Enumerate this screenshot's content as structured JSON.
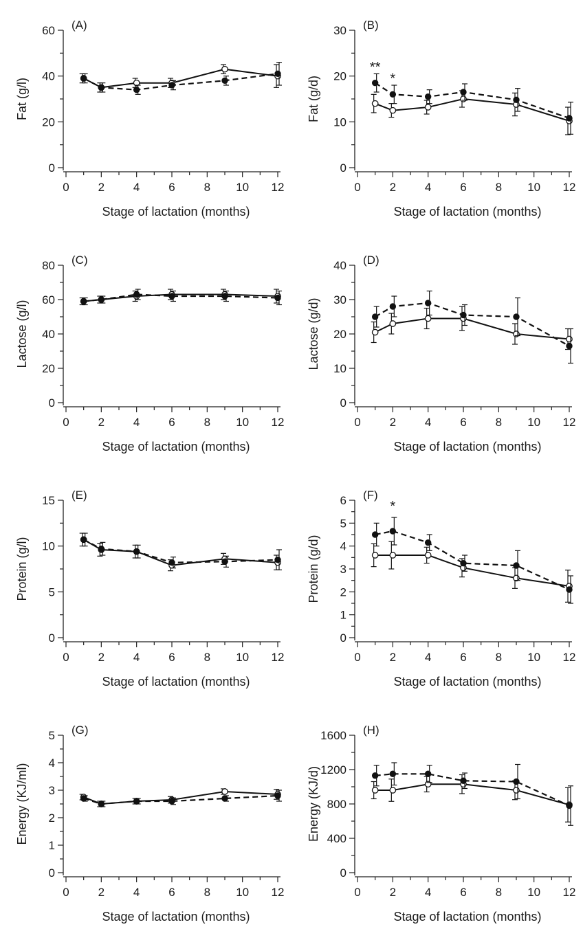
{
  "chart_data": [
    {
      "id": "A",
      "type": "line",
      "panel_label": "(A)",
      "ylabel": "Fat (g/l)",
      "xlabel": "Stage of lactation (months)",
      "xlim": [
        0,
        12
      ],
      "ylim": [
        0,
        60
      ],
      "x_ticks": [
        0,
        2,
        4,
        6,
        8,
        10,
        12
      ],
      "y_ticks": [
        0,
        20,
        40,
        60
      ],
      "series": [
        {
          "style": "solid",
          "marker": "open",
          "x": [
            1,
            2,
            4,
            6,
            9,
            12
          ],
          "y": [
            39,
            35,
            37,
            37,
            43,
            40
          ],
          "err": [
            2,
            2,
            2,
            2,
            2,
            5
          ]
        },
        {
          "style": "dashed",
          "marker": "filled",
          "x": [
            1,
            2,
            4,
            6,
            9,
            12
          ],
          "y": [
            39,
            35,
            34,
            36,
            38,
            41
          ],
          "err": [
            2,
            2,
            2,
            2,
            2,
            5
          ]
        }
      ],
      "annotations": []
    },
    {
      "id": "B",
      "type": "line",
      "panel_label": "(B)",
      "ylabel": "Fat (g/d)",
      "xlabel": "Stage of lactation (months)",
      "xlim": [
        0,
        12
      ],
      "ylim": [
        0,
        30
      ],
      "x_ticks": [
        0,
        2,
        4,
        6,
        8,
        10,
        12
      ],
      "y_ticks": [
        0,
        10,
        20,
        30
      ],
      "series": [
        {
          "style": "solid",
          "marker": "open",
          "x": [
            1,
            2,
            4,
            6,
            9,
            12
          ],
          "y": [
            14,
            12.5,
            13.2,
            15,
            13.8,
            10.2
          ],
          "err": [
            2,
            1.5,
            1.5,
            1.8,
            2.5,
            3
          ]
        },
        {
          "style": "dashed",
          "marker": "filled",
          "x": [
            1,
            2,
            4,
            6,
            9,
            12
          ],
          "y": [
            18.5,
            16,
            15.5,
            16.5,
            14.8,
            10.8
          ],
          "err": [
            2,
            2,
            1.5,
            1.8,
            2.5,
            3.5
          ]
        }
      ],
      "annotations": [
        {
          "text": "**",
          "x": 1,
          "y": 21
        },
        {
          "text": "*",
          "x": 2,
          "y": 18.5
        }
      ]
    },
    {
      "id": "C",
      "type": "line",
      "panel_label": "(C)",
      "ylabel": "Lactose (g/l)",
      "xlabel": "Stage of lactation (months)",
      "xlim": [
        0,
        12
      ],
      "ylim": [
        0,
        80
      ],
      "x_ticks": [
        0,
        2,
        4,
        6,
        8,
        10,
        12
      ],
      "y_ticks": [
        0,
        20,
        40,
        60,
        80
      ],
      "series": [
        {
          "style": "solid",
          "marker": "open",
          "x": [
            1,
            2,
            4,
            6,
            9,
            12
          ],
          "y": [
            59,
            60,
            62,
            63,
            63,
            62
          ],
          "err": [
            2,
            2,
            3,
            3,
            3,
            4
          ]
        },
        {
          "style": "dashed",
          "marker": "filled",
          "x": [
            1,
            2,
            4,
            6,
            9,
            12
          ],
          "y": [
            59,
            60,
            63,
            62,
            62,
            61
          ],
          "err": [
            2,
            2,
            3,
            3,
            3,
            4
          ]
        }
      ],
      "annotations": []
    },
    {
      "id": "D",
      "type": "line",
      "panel_label": "(D)",
      "ylabel": "Lactose (g/d)",
      "xlabel": "Stage of lactation (months)",
      "xlim": [
        0,
        12
      ],
      "ylim": [
        0,
        40
      ],
      "x_ticks": [
        0,
        2,
        4,
        6,
        8,
        10,
        12
      ],
      "y_ticks": [
        0,
        10,
        20,
        30,
        40
      ],
      "series": [
        {
          "style": "solid",
          "marker": "open",
          "x": [
            1,
            2,
            4,
            6,
            9,
            12
          ],
          "y": [
            20.5,
            23,
            24.5,
            24.5,
            20,
            18.5
          ],
          "err": [
            3,
            3,
            3,
            3.5,
            3,
            3
          ]
        },
        {
          "style": "dashed",
          "marker": "filled",
          "x": [
            1,
            2,
            4,
            6,
            9,
            12
          ],
          "y": [
            25,
            28,
            29,
            25.5,
            25,
            16.5
          ],
          "err": [
            3,
            3,
            3.5,
            3,
            5.5,
            5
          ]
        }
      ],
      "annotations": []
    },
    {
      "id": "E",
      "type": "line",
      "panel_label": "(E)",
      "ylabel": "Protein (g/l)",
      "xlabel": "Stage of lactation (months)",
      "xlim": [
        0,
        12
      ],
      "ylim": [
        0,
        15
      ],
      "x_ticks": [
        0,
        2,
        4,
        6,
        8,
        10,
        12
      ],
      "y_ticks": [
        0,
        5,
        10,
        15
      ],
      "series": [
        {
          "style": "solid",
          "marker": "open",
          "x": [
            1,
            2,
            4,
            6,
            9,
            12
          ],
          "y": [
            10.7,
            9.6,
            9.4,
            7.9,
            8.6,
            8.2
          ],
          "err": [
            0.7,
            0.7,
            0.7,
            0.6,
            0.6,
            0.8
          ]
        },
        {
          "style": "dashed",
          "marker": "filled",
          "x": [
            1,
            2,
            4,
            6,
            9,
            12
          ],
          "y": [
            10.7,
            9.7,
            9.4,
            8.2,
            8.3,
            8.5
          ],
          "err": [
            0.7,
            0.7,
            0.7,
            0.6,
            0.6,
            1.1
          ]
        }
      ],
      "annotations": []
    },
    {
      "id": "F",
      "type": "line",
      "panel_label": "(F)",
      "ylabel": "Protein (g/d)",
      "xlabel": "Stage of lactation (months)",
      "xlim": [
        0,
        12
      ],
      "ylim": [
        0,
        6
      ],
      "x_ticks": [
        0,
        2,
        4,
        6,
        8,
        10,
        12
      ],
      "y_ticks": [
        0,
        1,
        2,
        3,
        4,
        5,
        6
      ],
      "series": [
        {
          "style": "solid",
          "marker": "open",
          "x": [
            1,
            2,
            4,
            6,
            9,
            12
          ],
          "y": [
            3.6,
            3.6,
            3.6,
            3.05,
            2.6,
            2.25
          ],
          "err": [
            0.5,
            0.6,
            0.35,
            0.4,
            0.45,
            0.7
          ]
        },
        {
          "style": "dashed",
          "marker": "filled",
          "x": [
            1,
            2,
            4,
            6,
            9,
            12
          ],
          "y": [
            4.5,
            4.65,
            4.15,
            3.25,
            3.15,
            2.1
          ],
          "err": [
            0.5,
            0.6,
            0.35,
            0.35,
            0.65,
            0.6
          ]
        }
      ],
      "annotations": [
        {
          "text": "*",
          "x": 2,
          "y": 5.55
        }
      ]
    },
    {
      "id": "G",
      "type": "line",
      "panel_label": "(G)",
      "ylabel": "Energy (KJ/ml)",
      "xlabel": "Stage of lactation (months)",
      "xlim": [
        0,
        12
      ],
      "ylim": [
        0,
        5
      ],
      "x_ticks": [
        0,
        2,
        4,
        6,
        8,
        10,
        12
      ],
      "y_ticks": [
        0,
        1,
        2,
        3,
        4,
        5
      ],
      "series": [
        {
          "style": "solid",
          "marker": "open",
          "x": [
            1,
            2,
            4,
            6,
            9,
            12
          ],
          "y": [
            2.75,
            2.5,
            2.6,
            2.65,
            2.95,
            2.85
          ],
          "err": [
            0.1,
            0.1,
            0.1,
            0.12,
            0.1,
            0.18
          ]
        },
        {
          "style": "dashed",
          "marker": "filled",
          "x": [
            1,
            2,
            4,
            6,
            9,
            12
          ],
          "y": [
            2.7,
            2.5,
            2.6,
            2.6,
            2.7,
            2.8
          ],
          "err": [
            0.1,
            0.1,
            0.1,
            0.12,
            0.1,
            0.2
          ]
        }
      ],
      "annotations": []
    },
    {
      "id": "H",
      "type": "line",
      "panel_label": "(H)",
      "ylabel": "Energy (KJ/d)",
      "xlabel": "Stage of lactation (months)",
      "xlim": [
        0,
        12
      ],
      "ylim": [
        0,
        1600
      ],
      "x_ticks": [
        0,
        2,
        4,
        6,
        8,
        10,
        12
      ],
      "y_ticks": [
        0,
        400,
        800,
        1200,
        1600
      ],
      "series": [
        {
          "style": "solid",
          "marker": "open",
          "x": [
            1,
            2,
            4,
            6,
            9,
            12
          ],
          "y": [
            960,
            960,
            1030,
            1030,
            960,
            790
          ],
          "err": [
            100,
            130,
            90,
            110,
            110,
            200
          ]
        },
        {
          "style": "dashed",
          "marker": "filled",
          "x": [
            1,
            2,
            4,
            6,
            9,
            12
          ],
          "y": [
            1130,
            1150,
            1150,
            1070,
            1060,
            780
          ],
          "err": [
            120,
            130,
            100,
            90,
            200,
            230
          ]
        }
      ],
      "annotations": []
    }
  ]
}
